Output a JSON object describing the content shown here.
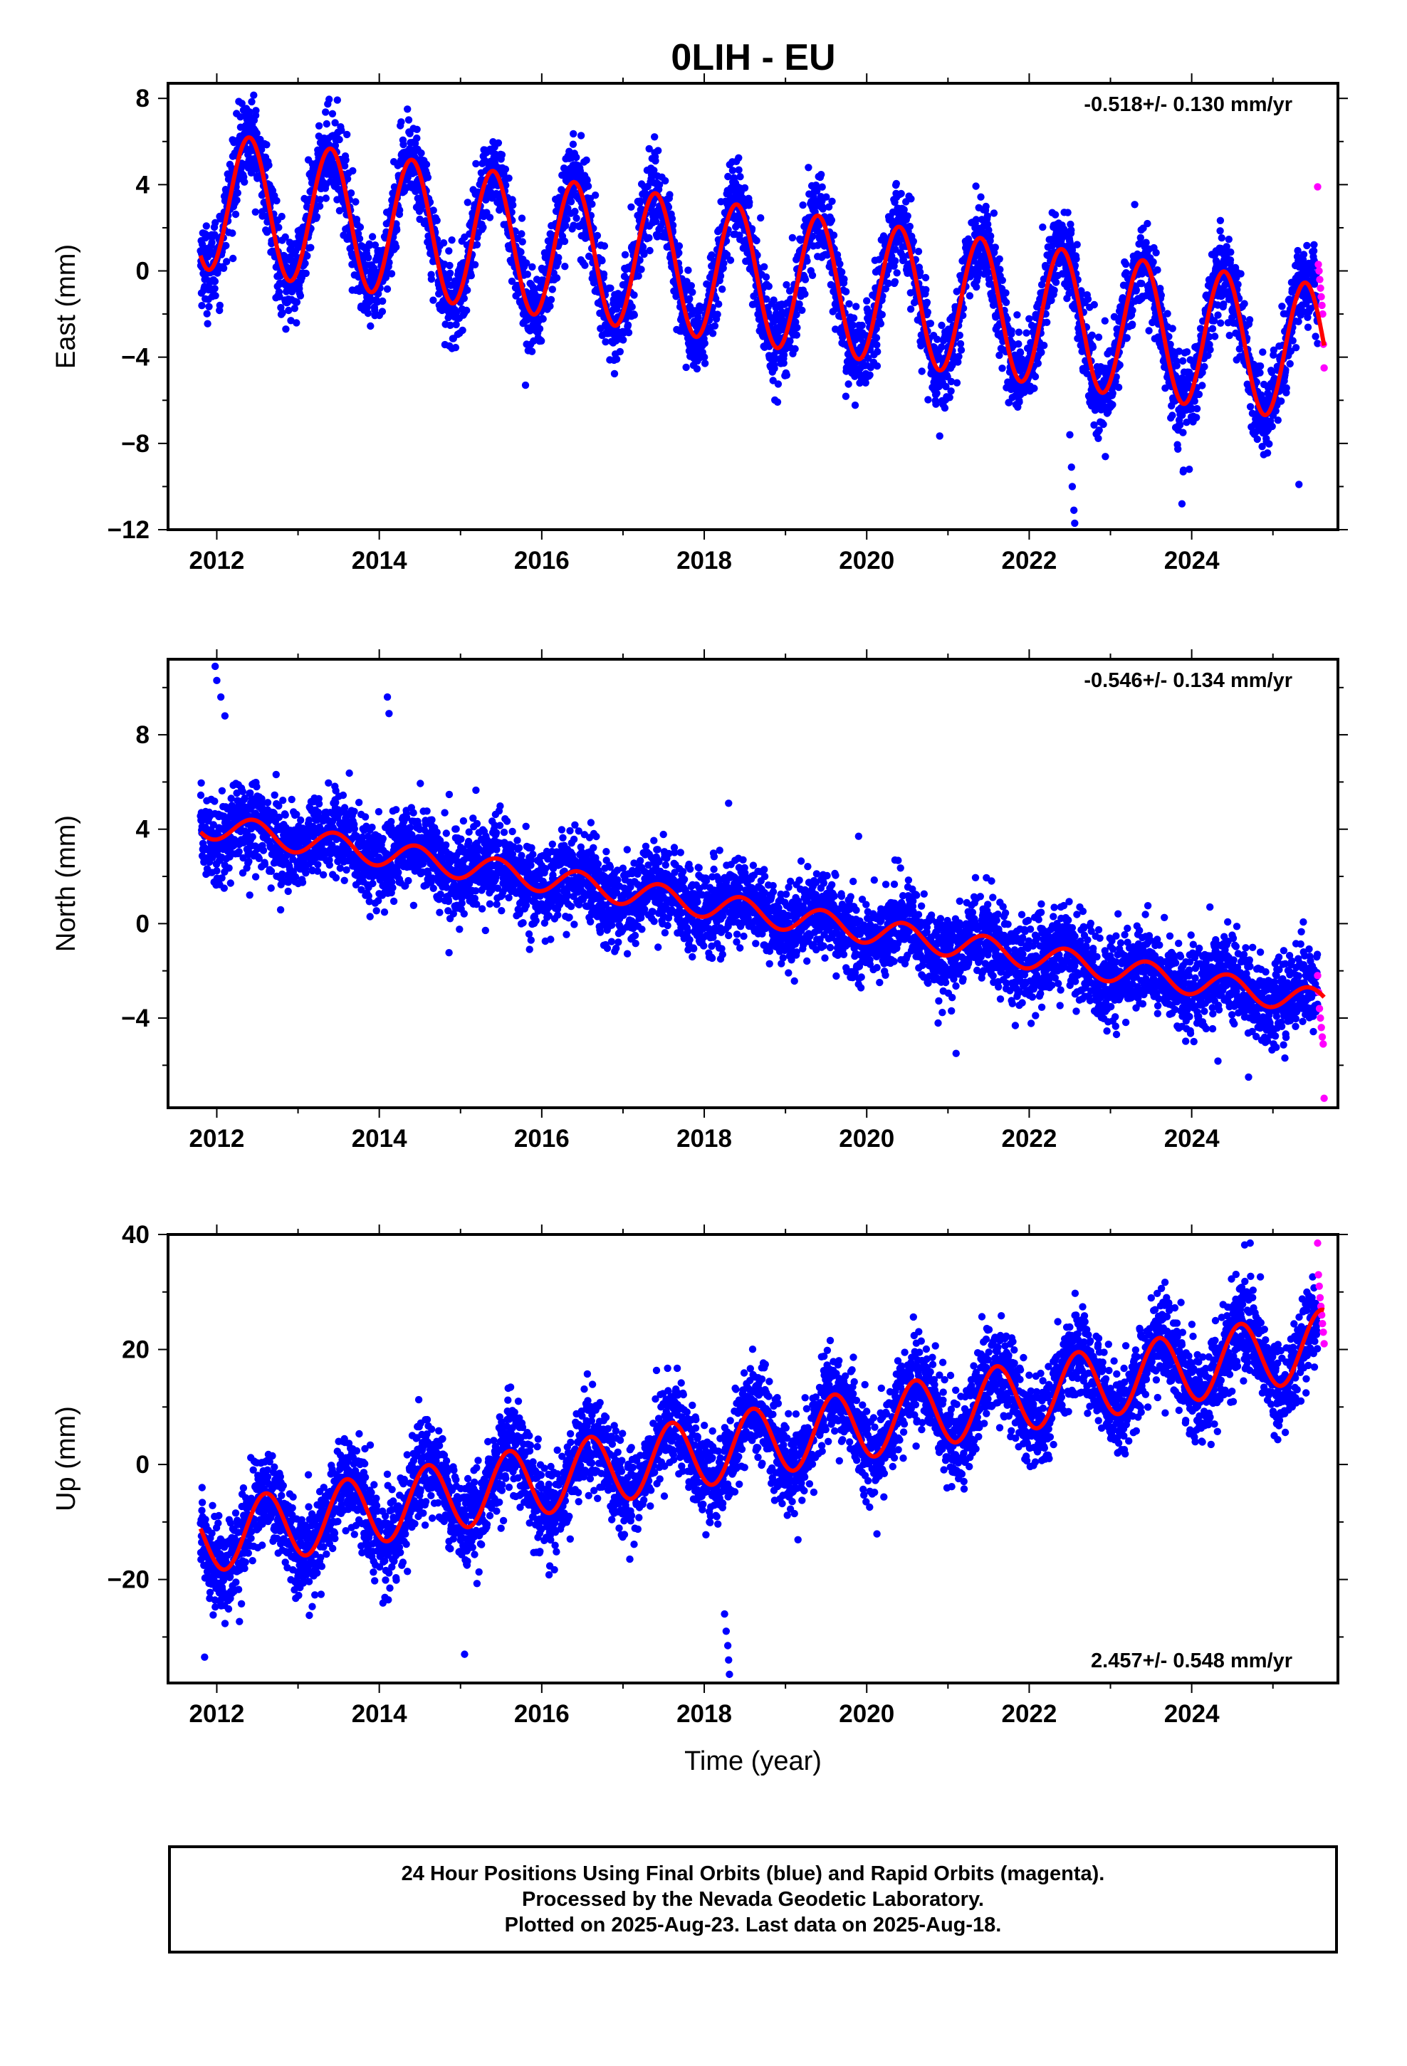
{
  "title": "0LIH - EU",
  "colors": {
    "final_orbits": "#0000ff",
    "rapid_orbits": "#ff00ff",
    "model": "#ff0000",
    "frame": "#000000",
    "background": "#ffffff"
  },
  "footer": {
    "line1": "24 Hour Positions Using Final Orbits (blue) and Rapid Orbits (magenta).",
    "line2": "Processed by the Nevada Geodetic Laboratory.",
    "line3": "Plotted on 2025-Aug-23. Last data on 2025-Aug-18."
  },
  "chart_data": [
    {
      "type": "scatter",
      "panel": "east",
      "ylabel": "East (mm)",
      "xlabel": "",
      "rate_text": "-0.518+/- 0.130 mm/yr",
      "rate_position": "top-right",
      "xlim": [
        2011.4,
        2025.8
      ],
      "ylim": [
        -12,
        8.7
      ],
      "xticks": [
        2012,
        2014,
        2016,
        2018,
        2020,
        2022,
        2024
      ],
      "yticks": [
        -12,
        -8,
        -4,
        0,
        4,
        8
      ],
      "yticklabels": [
        "−12",
        "−8",
        "−4",
        "0",
        "4",
        "8"
      ],
      "grid": false,
      "data_start": 2011.8,
      "data_end": 2025.63,
      "model": {
        "intercept_at_start": 3.3,
        "slope_mm_per_yr": -0.518,
        "annual_amplitude": 3.2,
        "annual_peak_phase": 0.4,
        "scatter_sd": 1.0
      },
      "rapid_orbits": {
        "x_range": [
          2025.55,
          2025.63
        ],
        "y_values": [
          3.9,
          0.3,
          0.0,
          -0.4,
          -0.8,
          -1.2,
          -1.6,
          -2.0,
          -3.4,
          -4.5
        ]
      },
      "outliers": [
        [
          2022.5,
          -7.6
        ],
        [
          2022.52,
          -9.1
        ],
        [
          2022.53,
          -10.0
        ],
        [
          2022.55,
          -11.1
        ],
        [
          2022.56,
          -11.7
        ],
        [
          2023.88,
          -10.8
        ],
        [
          2023.97,
          -9.2
        ],
        [
          2025.32,
          -9.9
        ],
        [
          2015.8,
          -5.3
        ],
        [
          2012.85,
          -2.7
        ]
      ]
    },
    {
      "type": "scatter",
      "panel": "north",
      "ylabel": "North (mm)",
      "xlabel": "",
      "rate_text": "-0.546+/- 0.134 mm/yr",
      "rate_position": "top-right",
      "xlim": [
        2011.4,
        2025.8
      ],
      "ylim": [
        -7.8,
        11.2
      ],
      "xticks": [
        2012,
        2014,
        2016,
        2018,
        2020,
        2022,
        2024
      ],
      "yticks": [
        -4,
        0,
        4,
        8
      ],
      "yticklabels": [
        "−4",
        "0",
        "4",
        "8"
      ],
      "grid": false,
      "data_start": 2011.8,
      "data_end": 2025.63,
      "model": {
        "intercept_at_start": 4.2,
        "slope_mm_per_yr": -0.546,
        "annual_amplitude": 0.55,
        "annual_peak_phase": 0.45,
        "scatter_sd": 0.9
      },
      "rapid_orbits": {
        "x_range": [
          2025.55,
          2025.63
        ],
        "y_values": [
          -2.2,
          -2.9,
          -3.6,
          -4.0,
          -4.4,
          -4.8,
          -5.1,
          -7.4
        ]
      },
      "outliers": [
        [
          2011.98,
          10.9
        ],
        [
          2012.0,
          10.3
        ],
        [
          2012.05,
          9.6
        ],
        [
          2012.1,
          8.8
        ],
        [
          2014.1,
          9.6
        ],
        [
          2014.12,
          8.9
        ],
        [
          2018.3,
          5.1
        ],
        [
          2019.9,
          3.7
        ],
        [
          2021.1,
          -5.5
        ],
        [
          2024.7,
          -6.5
        ]
      ]
    },
    {
      "type": "scatter",
      "panel": "up",
      "ylabel": "Up (mm)",
      "xlabel": "Time (year)",
      "rate_text": "2.457+/- 0.548 mm/yr",
      "rate_position": "bottom-right",
      "xlim": [
        2011.4,
        2025.8
      ],
      "ylim": [
        -38,
        40
      ],
      "xticks": [
        2012,
        2014,
        2016,
        2018,
        2020,
        2022,
        2024
      ],
      "yticks": [
        -20,
        0,
        20,
        40
      ],
      "yticklabels": [
        "−20",
        "0",
        "20",
        "40"
      ],
      "grid": false,
      "data_start": 2011.8,
      "data_end": 2025.63,
      "model": {
        "intercept_at_start": -13.0,
        "slope_mm_per_yr": 2.457,
        "annual_amplitude": 6.0,
        "annual_peak_phase": 0.6,
        "scatter_sd": 4.0
      },
      "rapid_orbits": {
        "x_range": [
          2025.55,
          2025.63
        ],
        "y_values": [
          38.5,
          33.0,
          31.0,
          29.0,
          27.5,
          26.0,
          24.5,
          23.0,
          21.0
        ]
      },
      "outliers": [
        [
          2018.25,
          -26.0
        ],
        [
          2018.27,
          -29.0
        ],
        [
          2018.29,
          -31.5
        ],
        [
          2018.3,
          -34.0
        ],
        [
          2018.31,
          -36.5
        ],
        [
          2024.72,
          38.5
        ],
        [
          2015.05,
          -33.0
        ],
        [
          2011.85,
          -33.5
        ]
      ]
    }
  ]
}
